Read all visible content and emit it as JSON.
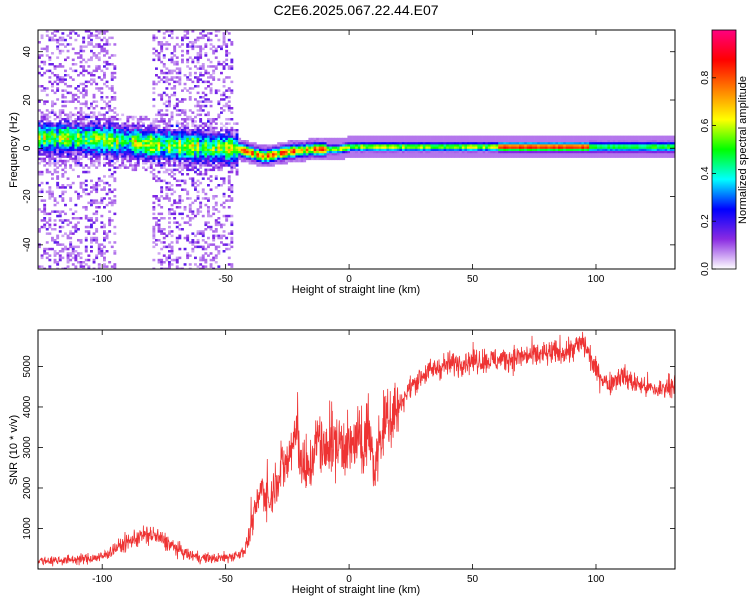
{
  "title": "C2E6.2025.067.22.44.E07",
  "chart_data": [
    {
      "type": "heatmap",
      "xlabel": "Height of straight line (km)",
      "ylabel": "Frequency (Hz)",
      "xlim": [
        -126,
        132
      ],
      "ylim": [
        -50,
        49
      ],
      "x_ticks": [
        -100,
        -50,
        0,
        50,
        100
      ],
      "y_ticks": [
        -40,
        -20,
        0,
        20,
        40
      ],
      "grid": false,
      "ridge": [
        {
          "x": -126,
          "f": 5
        },
        {
          "x": -100,
          "f": 4
        },
        {
          "x": -80,
          "f": 2
        },
        {
          "x": -60,
          "f": 1
        },
        {
          "x": -45,
          "f": 0
        },
        {
          "x": -35,
          "f": -3
        },
        {
          "x": -25,
          "f": -1
        },
        {
          "x": -15,
          "f": 0
        },
        {
          "x": -5,
          "f": 0
        },
        {
          "x": 0,
          "f": 1
        },
        {
          "x": 20,
          "f": 1
        },
        {
          "x": 60,
          "f": 1
        },
        {
          "x": 97,
          "f": 1
        },
        {
          "x": 132,
          "f": 1
        }
      ],
      "colorbar": {
        "label": "Normalized spectral amplitude",
        "range": [
          0,
          1
        ],
        "ticks": [
          0.0,
          0.2,
          0.4,
          0.6,
          0.8
        ],
        "colors": [
          "#ffffff",
          "#8a2be2",
          "#0000ff",
          "#00ffff",
          "#00ff00",
          "#ffff00",
          "#ff8000",
          "#ff0000",
          "#ff0080"
        ]
      }
    },
    {
      "type": "line",
      "xlabel": "Height of straight line (km)",
      "ylabel": "SNR (10 * v/v)",
      "xlim": [
        -126,
        132
      ],
      "ylim": [
        0,
        5900
      ],
      "x_ticks": [
        -100,
        -50,
        0,
        50,
        100
      ],
      "y_ticks": [
        1000,
        2000,
        3000,
        4000,
        5000
      ],
      "grid": false,
      "series": [
        {
          "color": "#ee3333",
          "x": [
            -126,
            -115,
            -105,
            -100,
            -95,
            -90,
            -85,
            -80,
            -75,
            -70,
            -65,
            -60,
            -55,
            -50,
            -45,
            -42,
            -40,
            -37,
            -35,
            -32,
            -30,
            -27,
            -25,
            -22,
            -20,
            -18,
            -15,
            -12,
            -10,
            -8,
            -5,
            -3,
            0,
            3,
            5,
            8,
            10,
            12,
            15,
            20,
            25,
            30,
            35,
            40,
            50,
            60,
            70,
            80,
            90,
            95,
            100,
            105,
            110,
            115,
            120,
            125,
            132
          ],
          "y": [
            200,
            220,
            260,
            300,
            500,
            650,
            800,
            850,
            700,
            500,
            350,
            280,
            260,
            280,
            350,
            500,
            900,
            1700,
            2000,
            1600,
            2200,
            2500,
            2600,
            3300,
            3000,
            2200,
            2700,
            3300,
            2700,
            3200,
            3000,
            3200,
            2900,
            3200,
            3000,
            3500,
            2400,
            3000,
            3700,
            4000,
            4500,
            4800,
            4950,
            5050,
            5150,
            5150,
            5250,
            5300,
            5400,
            5600,
            4900,
            4550,
            4800,
            4600,
            4500,
            4400,
            4600
          ]
        }
      ]
    }
  ]
}
